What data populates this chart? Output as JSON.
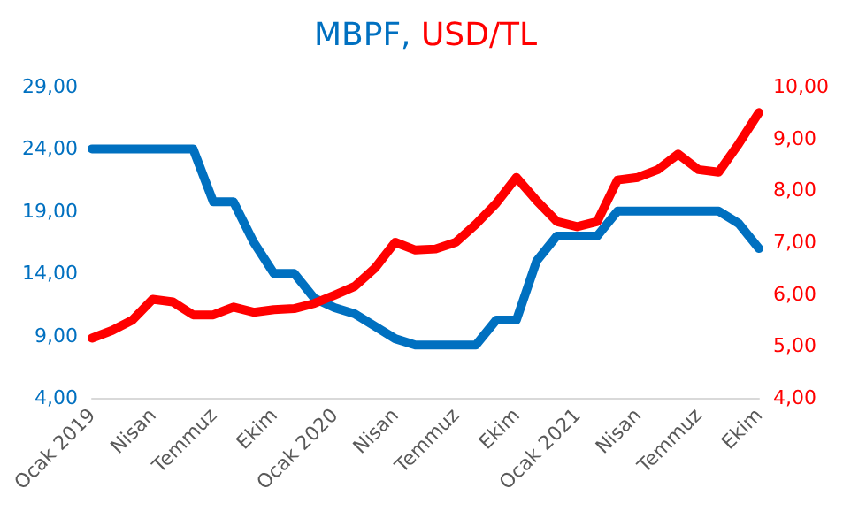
{
  "chart_data": {
    "type": "line",
    "title": "MBPF, USD/TL",
    "categories": [
      "Ocak 2019",
      null,
      null,
      "Nisan",
      null,
      null,
      "Temmuz",
      null,
      null,
      "Ekim",
      null,
      null,
      "Ocak 2020",
      null,
      null,
      "Nisan",
      null,
      null,
      "Temmuz",
      null,
      null,
      "Ekim",
      null,
      null,
      "Ocak 2021",
      null,
      null,
      "Nisan",
      null,
      null,
      "Temmuz",
      null,
      null,
      "Ekim"
    ],
    "series": [
      {
        "color": "#0070c0",
        "values": [
          24,
          24,
          24,
          24,
          24,
          24,
          19.75,
          19.75,
          16.5,
          14,
          14,
          12,
          11.25,
          10.75,
          9.75,
          8.75,
          8.25,
          8.25,
          8.25,
          8.25,
          10.25,
          10.25,
          15,
          17,
          17,
          17,
          19,
          19,
          19,
          19,
          19,
          19,
          18,
          16
        ]
      },
      {
        "color": "#ff0000",
        "axis": "y2",
        "values": [
          5.15,
          5.3,
          5.5,
          5.9,
          5.85,
          5.6,
          5.6,
          5.75,
          5.65,
          5.7,
          5.72,
          5.82,
          5.98,
          6.15,
          6.5,
          7.0,
          6.85,
          6.87,
          7.0,
          7.35,
          7.75,
          8.25,
          7.8,
          7.4,
          7.3,
          7.4,
          8.2,
          8.25,
          8.4,
          8.7,
          8.4,
          8.35,
          8.9,
          9.5
        ]
      }
    ],
    "ylim": [
      4,
      29
    ],
    "yticks": [
      {
        "value": 4,
        "label": "4,00"
      },
      {
        "value": 9,
        "label": "9,00"
      },
      {
        "value": 14,
        "label": "14,00"
      },
      {
        "value": 19,
        "label": "19,00"
      },
      {
        "value": 24,
        "label": "24,00"
      },
      {
        "value": 29,
        "label": "29,00"
      }
    ],
    "y2lim": [
      4,
      10
    ],
    "y2ticks": [
      {
        "value": 4,
        "label": "4,00"
      },
      {
        "value": 5,
        "label": "5,00"
      },
      {
        "value": 6,
        "label": "6,00"
      },
      {
        "value": 7,
        "label": "7,00"
      },
      {
        "value": 8,
        "label": "8,00"
      },
      {
        "value": 9,
        "label": "9,00"
      },
      {
        "value": 10,
        "label": "10,00"
      }
    ],
    "grid": false,
    "marker": "none",
    "line_style": "solid"
  }
}
